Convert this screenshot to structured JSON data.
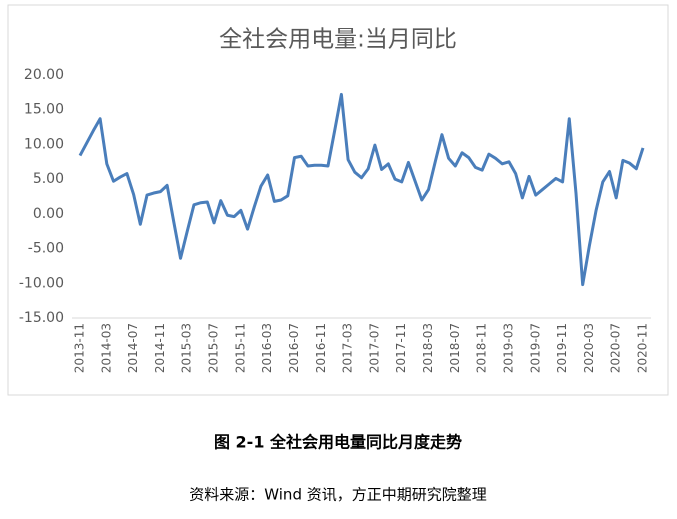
{
  "chart_data": {
    "type": "line",
    "title": "全社会用电量:当月同比",
    "categories": [
      "2013-11",
      null,
      null,
      null,
      "2014-03",
      null,
      null,
      null,
      "2014-07",
      null,
      null,
      null,
      "2014-11",
      null,
      null,
      null,
      "2015-03",
      null,
      null,
      null,
      "2015-07",
      null,
      null,
      null,
      "2015-11",
      null,
      null,
      null,
      "2016-03",
      null,
      null,
      null,
      "2016-07",
      null,
      null,
      null,
      "2016-11",
      null,
      null,
      null,
      "2017-03",
      null,
      null,
      null,
      "2017-07",
      null,
      null,
      null,
      "2017-11",
      null,
      null,
      null,
      "2018-03",
      null,
      null,
      null,
      "2018-07",
      null,
      null,
      null,
      "2018-11",
      null,
      null,
      null,
      "2019-03",
      null,
      null,
      null,
      "2019-07",
      null,
      null,
      null,
      "2019-11",
      null,
      null,
      null,
      "2020-03",
      null,
      null,
      null,
      "2020-07",
      null,
      null,
      null,
      "2020-11"
    ],
    "values": [
      8.4,
      10.2,
      12.0,
      13.7,
      7.2,
      4.7,
      5.3,
      5.8,
      2.8,
      -1.5,
      2.7,
      3.0,
      3.2,
      4.1,
      -1.2,
      -6.4,
      -2.5,
      1.3,
      1.6,
      1.7,
      -1.3,
      1.9,
      -0.2,
      -0.4,
      0.5,
      -2.2,
      1.0,
      4.0,
      5.6,
      1.8,
      2.0,
      2.6,
      8.1,
      8.3,
      6.9,
      7.0,
      7.0,
      6.9,
      12.0,
      17.2,
      7.8,
      6.0,
      5.2,
      6.5,
      9.9,
      6.4,
      7.2,
      5.0,
      4.6,
      7.4,
      4.7,
      2.0,
      3.5,
      7.5,
      11.4,
      8.0,
      6.9,
      8.8,
      8.1,
      6.7,
      6.3,
      8.6,
      8.0,
      7.2,
      7.5,
      5.8,
      2.3,
      5.4,
      2.7,
      3.5,
      4.3,
      5.1,
      4.6,
      13.7,
      3.0,
      -10.2,
      -4.6,
      0.5,
      4.6,
      6.1,
      2.3,
      7.7,
      7.3,
      6.5,
      9.5
    ],
    "color": "#4a7ebb",
    "ylim": [
      -15,
      20
    ],
    "yticks": [
      {
        "value": -15,
        "label": "-15.00"
      },
      {
        "value": -10,
        "label": "-10.00"
      },
      {
        "value": -5,
        "label": "-5.00"
      },
      {
        "value": 0,
        "label": "0.00"
      },
      {
        "value": 5,
        "label": "5.00"
      },
      {
        "value": 10,
        "label": "10.00"
      },
      {
        "value": 15,
        "label": "15.00"
      },
      {
        "value": 20,
        "label": "20.00"
      }
    ],
    "grid": false
  },
  "caption": "图 2-1  全社会用电量同比月度走势",
  "source": "资料来源：Wind 资讯，方正中期研究院整理"
}
